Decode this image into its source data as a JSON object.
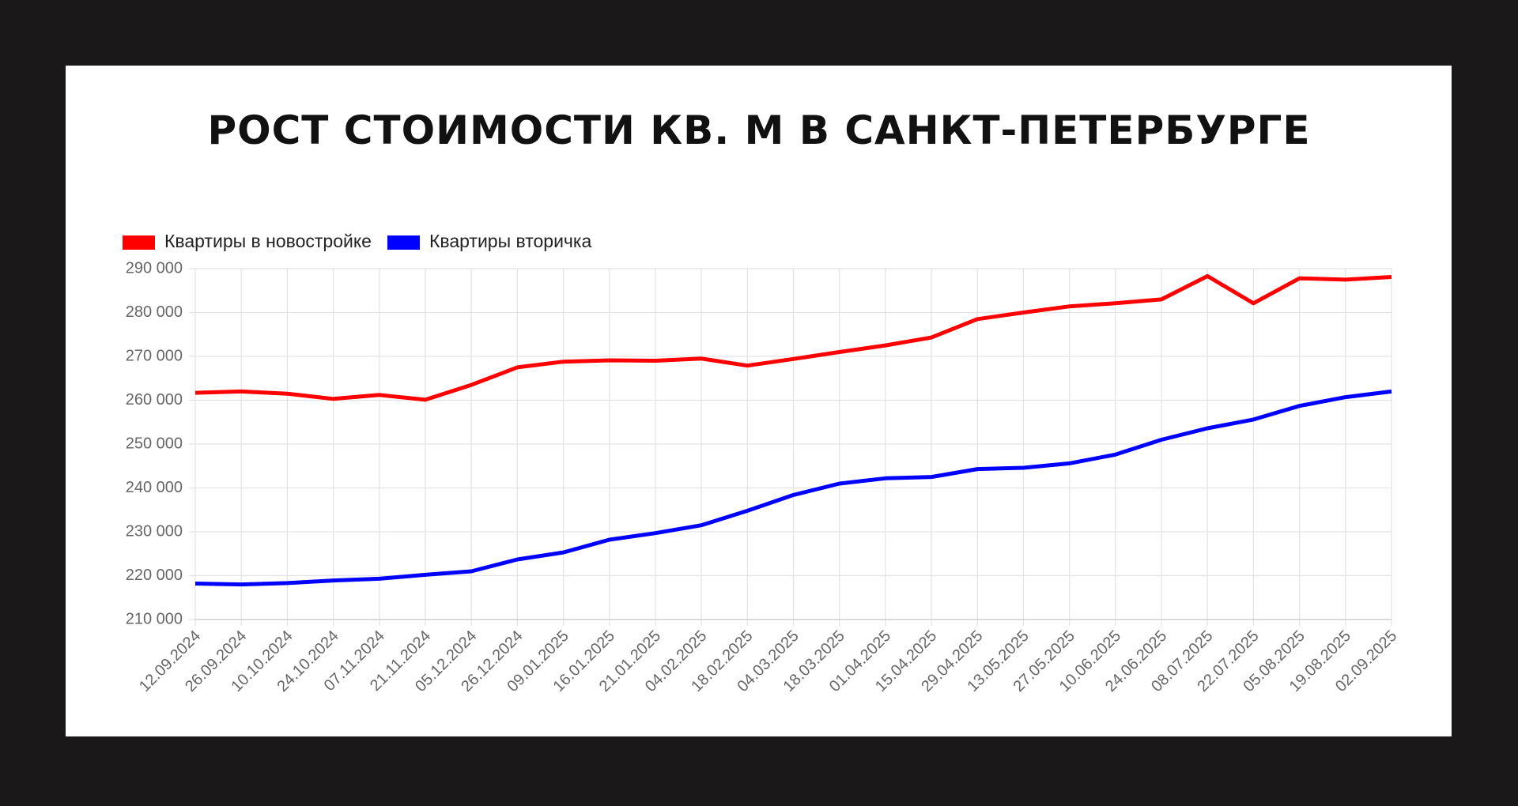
{
  "chart_data": {
    "type": "line",
    "title": "РОСТ СТОИМОСТИ КВ. М В САНКТ-ПЕТЕРБУРГЕ",
    "categories": [
      "12.09.2024",
      "26.09.2024",
      "10.10.2024",
      "24.10.2024",
      "07.11.2024",
      "21.11.2024",
      "05.12.2024",
      "26.12.2024",
      "09.01.2025",
      "16.01.2025",
      "21.01.2025",
      "04.02.2025",
      "18.02.2025",
      "04.03.2025",
      "18.03.2025",
      "01.04.2025",
      "15.04.2025",
      "29.04.2025",
      "13.05.2025",
      "27.05.2025",
      "10.06.2025",
      "24.06.2025",
      "08.07.2025",
      "22.07.2025",
      "05.08.2025",
      "19.08.2025",
      "02.09.2025"
    ],
    "series": [
      {
        "name": "Квартиры в новостройке",
        "color": "#ff0000",
        "values": [
          261700,
          262000,
          261500,
          260300,
          261200,
          260100,
          263500,
          267500,
          268800,
          269100,
          269000,
          269500,
          267900,
          269400,
          271000,
          272500,
          274300,
          278500,
          280000,
          281400,
          282100,
          283000,
          288300,
          282100,
          287800,
          287500,
          288100
        ]
      },
      {
        "name": "Квартиры вторичка",
        "color": "#0000ff",
        "values": [
          218200,
          218000,
          218300,
          218900,
          219300,
          220200,
          221000,
          223700,
          225300,
          228200,
          229700,
          231500,
          234800,
          238400,
          241000,
          242200,
          242500,
          244300,
          244600,
          245600,
          247600,
          251000,
          253600,
          255600,
          258700,
          260700,
          262000
        ]
      }
    ],
    "ylim": [
      210000,
      290000
    ],
    "yticks": [
      {
        "value": 210000,
        "label": "210 000"
      },
      {
        "value": 220000,
        "label": "220 000"
      },
      {
        "value": 230000,
        "label": "230 000"
      },
      {
        "value": 240000,
        "label": "240 000"
      },
      {
        "value": 250000,
        "label": "250 000"
      },
      {
        "value": 260000,
        "label": "260 000"
      },
      {
        "value": 270000,
        "label": "270 000"
      },
      {
        "value": 280000,
        "label": "280 000"
      },
      {
        "value": 290000,
        "label": "290 000"
      }
    ],
    "grid": true,
    "legend": "top-left"
  }
}
